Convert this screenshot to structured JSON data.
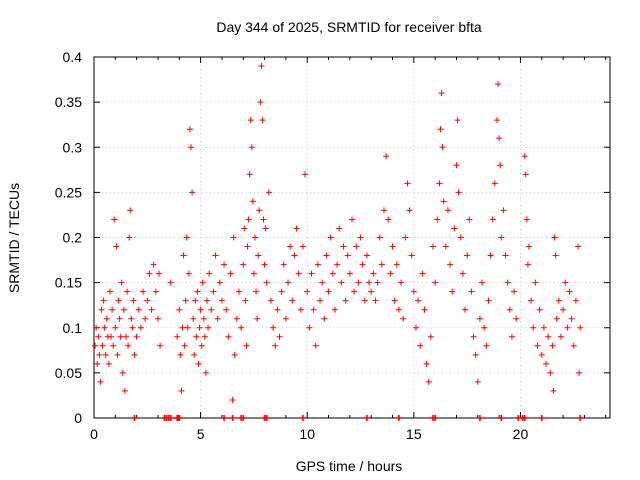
{
  "chart_data": {
    "type": "scatter",
    "title": "Day 344 of 2025, SRMTID for receiver bfta",
    "xlabel": "GPS time / hours",
    "ylabel": "SRMTID / TECUs",
    "xlim": [
      0,
      24.2
    ],
    "ylim": [
      0,
      0.4
    ],
    "x_ticks": [
      0,
      5,
      10,
      15,
      20
    ],
    "x_tick_labels": [
      "0",
      "5",
      "10",
      "15",
      "20"
    ],
    "y_ticks": [
      0,
      0.05,
      0.1,
      0.15,
      0.2,
      0.25,
      0.3,
      0.35,
      0.4
    ],
    "y_tick_labels": [
      "0",
      "0.05",
      "0.1",
      "0.15",
      "0.2",
      "0.25",
      "0.3",
      "0.35",
      "0.4"
    ],
    "grid": true,
    "marker": "plus",
    "color": "#ff0000",
    "series": [
      {
        "name": "SRMTID",
        "points": [
          [
            0.05,
            0.08
          ],
          [
            0.1,
            0.1
          ],
          [
            0.15,
            0.06
          ],
          [
            0.2,
            0.09
          ],
          [
            0.25,
            0.07
          ],
          [
            0.3,
            0.04
          ],
          [
            0.35,
            0.12
          ],
          [
            0.4,
            0.08
          ],
          [
            0.45,
            0.13
          ],
          [
            0.5,
            0.1
          ],
          [
            0.55,
            0.07
          ],
          [
            0.6,
            0.11
          ],
          [
            0.65,
            0.09
          ],
          [
            0.7,
            0.06
          ],
          [
            0.75,
            0.14
          ],
          [
            0.8,
            0.09
          ],
          [
            0.85,
            0.12
          ],
          [
            0.9,
            0.08
          ],
          [
            0.95,
            0.22
          ],
          [
            1.0,
            0.1
          ],
          [
            1.05,
            0.19
          ],
          [
            1.1,
            0.07
          ],
          [
            1.15,
            0.13
          ],
          [
            1.2,
            0.11
          ],
          [
            1.25,
            0.09
          ],
          [
            1.3,
            0.15
          ],
          [
            1.35,
            0.05
          ],
          [
            1.4,
            0.12
          ],
          [
            1.45,
            0.03
          ],
          [
            1.5,
            0.09
          ],
          [
            1.55,
            0.14
          ],
          [
            1.6,
            0.08
          ],
          [
            1.65,
            0.2
          ],
          [
            1.7,
            0.23
          ],
          [
            1.75,
            0.11
          ],
          [
            1.8,
            0.1
          ],
          [
            1.85,
            0.13
          ],
          [
            1.9,
            0.07
          ],
          [
            2.0,
            0.09
          ],
          [
            2.1,
            0.12
          ],
          [
            2.2,
            0.1
          ],
          [
            2.3,
            0.14
          ],
          [
            2.4,
            0.11
          ],
          [
            2.5,
            0.13
          ],
          [
            2.6,
            0.16
          ],
          [
            2.7,
            0.12
          ],
          [
            2.8,
            0.17
          ],
          [
            2.9,
            0.14
          ],
          [
            3.0,
            0.11
          ],
          [
            3.05,
            0.16
          ],
          [
            3.1,
            0.08
          ],
          [
            3.6,
            0.15
          ],
          [
            3.9,
            0.09
          ],
          [
            4.0,
            0.12
          ],
          [
            4.05,
            0.07
          ],
          [
            4.1,
            0.03
          ],
          [
            4.15,
            0.1
          ],
          [
            4.2,
            0.18
          ],
          [
            4.25,
            0.08
          ],
          [
            4.3,
            0.13
          ],
          [
            4.35,
            0.2
          ],
          [
            4.4,
            0.1
          ],
          [
            4.45,
            0.16
          ],
          [
            4.5,
            0.32
          ],
          [
            4.55,
            0.3
          ],
          [
            4.6,
            0.25
          ],
          [
            4.65,
            0.11
          ],
          [
            4.7,
            0.07
          ],
          [
            4.75,
            0.13
          ],
          [
            4.8,
            0.09
          ],
          [
            4.85,
            0.14
          ],
          [
            4.9,
            0.06
          ],
          [
            4.95,
            0.1
          ],
          [
            5.0,
            0.12
          ],
          [
            5.05,
            0.08
          ],
          [
            5.1,
            0.15
          ],
          [
            5.15,
            0.11
          ],
          [
            5.2,
            0.09
          ],
          [
            5.25,
            0.05
          ],
          [
            5.3,
            0.13
          ],
          [
            5.35,
            0.1
          ],
          [
            5.4,
            0.16
          ],
          [
            5.5,
            0.12
          ],
          [
            5.6,
            0.14
          ],
          [
            5.7,
            0.18
          ],
          [
            5.8,
            0.11
          ],
          [
            5.9,
            0.15
          ],
          [
            6.0,
            0.13
          ],
          [
            6.1,
            0.17
          ],
          [
            6.2,
            0.12
          ],
          [
            6.3,
            0.09
          ],
          [
            6.4,
            0.16
          ],
          [
            6.5,
            0.02
          ],
          [
            6.55,
            0.2
          ],
          [
            6.6,
            0.07
          ],
          [
            6.7,
            0.11
          ],
          [
            6.8,
            0.14
          ],
          [
            6.9,
            0.1
          ],
          [
            7.0,
            0.17
          ],
          [
            7.05,
            0.21
          ],
          [
            7.1,
            0.13
          ],
          [
            7.15,
            0.08
          ],
          [
            7.2,
            0.19
          ],
          [
            7.25,
            0.22
          ],
          [
            7.3,
            0.27
          ],
          [
            7.35,
            0.33
          ],
          [
            7.4,
            0.3
          ],
          [
            7.45,
            0.24
          ],
          [
            7.5,
            0.16
          ],
          [
            7.55,
            0.2
          ],
          [
            7.6,
            0.14
          ],
          [
            7.65,
            0.11
          ],
          [
            7.7,
            0.18
          ],
          [
            7.75,
            0.23
          ],
          [
            7.8,
            0.35
          ],
          [
            7.85,
            0.39
          ],
          [
            7.9,
            0.33
          ],
          [
            7.95,
            0.22
          ],
          [
            8.0,
            0.17
          ],
          [
            8.05,
            0.21
          ],
          [
            8.1,
            0.15
          ],
          [
            8.2,
            0.25
          ],
          [
            8.3,
            0.13
          ],
          [
            8.4,
            0.1
          ],
          [
            8.5,
            0.08
          ],
          [
            8.6,
            0.12
          ],
          [
            8.7,
            0.09
          ],
          [
            8.8,
            0.14
          ],
          [
            8.9,
            0.17
          ],
          [
            9.0,
            0.11
          ],
          [
            9.1,
            0.15
          ],
          [
            9.2,
            0.19
          ],
          [
            9.3,
            0.13
          ],
          [
            9.4,
            0.18
          ],
          [
            9.5,
            0.21
          ],
          [
            9.6,
            0.16
          ],
          [
            9.7,
            0.12
          ],
          [
            9.8,
            0.19
          ],
          [
            9.9,
            0.27
          ],
          [
            10.0,
            0.14
          ],
          [
            10.1,
            0.1
          ],
          [
            10.2,
            0.16
          ],
          [
            10.3,
            0.12
          ],
          [
            10.4,
            0.08
          ],
          [
            10.5,
            0.17
          ],
          [
            10.6,
            0.13
          ],
          [
            10.7,
            0.15
          ],
          [
            10.8,
            0.11
          ],
          [
            10.9,
            0.18
          ],
          [
            11.0,
            0.14
          ],
          [
            11.1,
            0.2
          ],
          [
            11.2,
            0.16
          ],
          [
            11.3,
            0.12
          ],
          [
            11.4,
            0.17
          ],
          [
            11.5,
            0.21
          ],
          [
            11.6,
            0.15
          ],
          [
            11.7,
            0.19
          ],
          [
            11.8,
            0.13
          ],
          [
            11.9,
            0.18
          ],
          [
            12.0,
            0.16
          ],
          [
            12.1,
            0.22
          ],
          [
            12.2,
            0.14
          ],
          [
            12.3,
            0.19
          ],
          [
            12.4,
            0.15
          ],
          [
            12.5,
            0.2
          ],
          [
            12.6,
            0.17
          ],
          [
            12.7,
            0.13
          ],
          [
            12.8,
            0.18
          ],
          [
            12.9,
            0.15
          ],
          [
            13.0,
            0.14
          ],
          [
            13.1,
            0.16
          ],
          [
            13.2,
            0.13
          ],
          [
            13.3,
            0.15
          ],
          [
            13.4,
            0.2
          ],
          [
            13.5,
            0.17
          ],
          [
            13.6,
            0.23
          ],
          [
            13.7,
            0.29
          ],
          [
            13.8,
            0.22
          ],
          [
            13.9,
            0.16
          ],
          [
            14.0,
            0.19
          ],
          [
            14.1,
            0.13
          ],
          [
            14.2,
            0.17
          ],
          [
            14.3,
            0.12
          ],
          [
            14.4,
            0.15
          ],
          [
            14.5,
            0.11
          ],
          [
            14.6,
            0.2
          ],
          [
            14.7,
            0.26
          ],
          [
            14.8,
            0.23
          ],
          [
            14.9,
            0.18
          ],
          [
            15.0,
            0.14
          ],
          [
            15.1,
            0.1
          ],
          [
            15.2,
            0.13
          ],
          [
            15.3,
            0.08
          ],
          [
            15.4,
            0.16
          ],
          [
            15.5,
            0.12
          ],
          [
            15.6,
            0.06
          ],
          [
            15.7,
            0.04
          ],
          [
            15.8,
            0.09
          ],
          [
            15.9,
            0.19
          ],
          [
            16.0,
            0.15
          ],
          [
            16.1,
            0.22
          ],
          [
            16.2,
            0.26
          ],
          [
            16.25,
            0.32
          ],
          [
            16.3,
            0.36
          ],
          [
            16.35,
            0.3
          ],
          [
            16.4,
            0.24
          ],
          [
            16.5,
            0.19
          ],
          [
            16.6,
            0.23
          ],
          [
            16.7,
            0.17
          ],
          [
            16.8,
            0.14
          ],
          [
            16.9,
            0.21
          ],
          [
            17.0,
            0.28
          ],
          [
            17.05,
            0.33
          ],
          [
            17.1,
            0.25
          ],
          [
            17.2,
            0.2
          ],
          [
            17.3,
            0.16
          ],
          [
            17.4,
            0.12
          ],
          [
            17.5,
            0.18
          ],
          [
            17.6,
            0.22
          ],
          [
            17.7,
            0.14
          ],
          [
            17.8,
            0.09
          ],
          [
            17.9,
            0.07
          ],
          [
            18.0,
            0.04
          ],
          [
            18.1,
            0.11
          ],
          [
            18.2,
            0.15
          ],
          [
            18.3,
            0.1
          ],
          [
            18.4,
            0.08
          ],
          [
            18.5,
            0.13
          ],
          [
            18.6,
            0.18
          ],
          [
            18.7,
            0.22
          ],
          [
            18.8,
            0.26
          ],
          [
            18.9,
            0.33
          ],
          [
            18.95,
            0.37
          ],
          [
            19.0,
            0.31
          ],
          [
            19.05,
            0.28
          ],
          [
            19.1,
            0.2
          ],
          [
            19.2,
            0.23
          ],
          [
            19.3,
            0.18
          ],
          [
            19.4,
            0.15
          ],
          [
            19.5,
            0.12
          ],
          [
            19.6,
            0.09
          ],
          [
            19.7,
            0.14
          ],
          [
            19.8,
            0.11
          ],
          [
            20.2,
            0.29
          ],
          [
            20.25,
            0.27
          ],
          [
            20.3,
            0.22
          ],
          [
            20.35,
            0.17
          ],
          [
            20.4,
            0.19
          ],
          [
            20.5,
            0.13
          ],
          [
            20.6,
            0.1
          ],
          [
            20.7,
            0.15
          ],
          [
            20.8,
            0.08
          ],
          [
            20.9,
            0.12
          ],
          [
            21.0,
            0.07
          ],
          [
            21.1,
            0.1
          ],
          [
            21.2,
            0.06
          ],
          [
            21.3,
            0.09
          ],
          [
            21.4,
            0.05
          ],
          [
            21.5,
            0.08
          ],
          [
            21.55,
            0.03
          ],
          [
            21.6,
            0.2
          ],
          [
            21.65,
            0.18
          ],
          [
            21.7,
            0.11
          ],
          [
            21.8,
            0.13
          ],
          [
            21.9,
            0.09
          ],
          [
            22.0,
            0.12
          ],
          [
            22.1,
            0.15
          ],
          [
            22.2,
            0.1
          ],
          [
            22.3,
            0.14
          ],
          [
            22.4,
            0.11
          ],
          [
            22.5,
            0.08
          ],
          [
            22.6,
            0.13
          ],
          [
            22.7,
            0.19
          ],
          [
            22.75,
            0.05
          ],
          [
            22.8,
            0.1
          ]
        ]
      }
    ],
    "baseline_markers": [
      1.9,
      3.3,
      3.4,
      3.5,
      3.6,
      3.9,
      3.95,
      4.0,
      6.1,
      6.5,
      6.9,
      7.0,
      8.0,
      8.1,
      9.8,
      12.8,
      14.3,
      15.9,
      16.0,
      18.1,
      19.1,
      19.9,
      20.1,
      20.2,
      21.0,
      22.8
    ]
  }
}
